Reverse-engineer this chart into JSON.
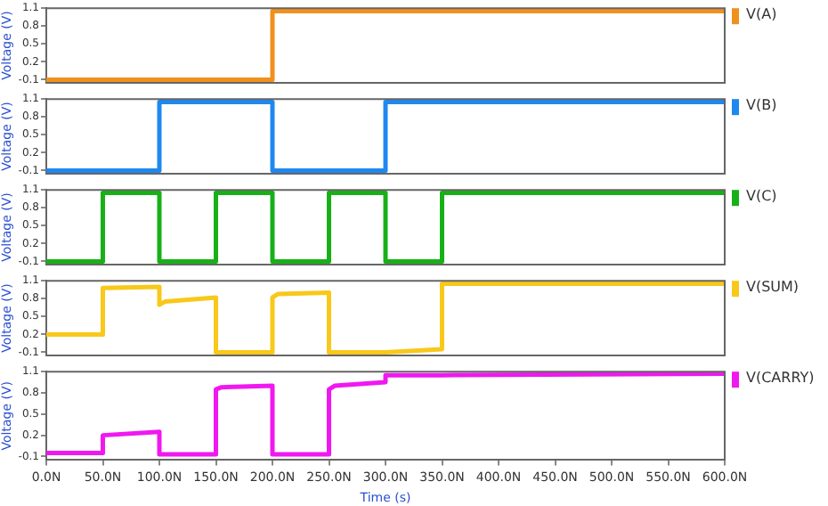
{
  "chart_data": [
    {
      "type": "line",
      "ylabel": "Voltage (V)",
      "xlim": [
        0,
        600
      ],
      "ylim": [
        -0.15,
        1.1
      ],
      "yticks": [
        -0.1,
        0.2,
        0.5,
        0.8,
        1.1
      ],
      "tick_labels": "y",
      "grid": false,
      "legend": "top right",
      "marker": "none",
      "line_style": "solid",
      "series": [
        {
          "name": "V(A)",
          "color": "#f0901e",
          "x": [
            0,
            100,
            200,
            200,
            400,
            600
          ],
          "values": [
            -0.1,
            -0.1,
            -0.1,
            1.05,
            1.05,
            1.05
          ]
        }
      ]
    },
    {
      "type": "line",
      "ylabel": "Voltage (V)",
      "xlim": [
        0,
        600
      ],
      "ylim": [
        -0.15,
        1.1
      ],
      "yticks": [
        -0.1,
        0.2,
        0.5,
        0.8,
        1.1
      ],
      "tick_labels": "y",
      "grid": false,
      "legend": "top right",
      "marker": "none",
      "line_style": "solid",
      "series": [
        {
          "name": "V(B)",
          "color": "#1e88f0",
          "x": [
            0,
            100,
            100,
            200,
            200,
            300,
            300,
            600
          ],
          "values": [
            -0.1,
            -0.1,
            1.05,
            1.05,
            -0.1,
            -0.1,
            1.05,
            1.05
          ]
        }
      ]
    },
    {
      "type": "line",
      "ylabel": "Voltage (V)",
      "xlim": [
        0,
        600
      ],
      "ylim": [
        -0.15,
        1.1
      ],
      "yticks": [
        -0.1,
        0.2,
        0.5,
        0.8,
        1.1
      ],
      "tick_labels": "y",
      "grid": false,
      "legend": "top right",
      "marker": "none",
      "line_style": "solid",
      "series": [
        {
          "name": "V(C)",
          "color": "#18b018",
          "x": [
            0,
            50,
            50,
            100,
            100,
            150,
            150,
            200,
            200,
            250,
            250,
            300,
            300,
            350,
            350,
            600
          ],
          "values": [
            -0.1,
            -0.1,
            1.05,
            1.05,
            -0.1,
            -0.1,
            1.05,
            1.05,
            -0.1,
            -0.1,
            1.05,
            1.05,
            -0.1,
            -0.1,
            1.05,
            1.05
          ]
        }
      ]
    },
    {
      "type": "line",
      "ylabel": "Voltage (V)",
      "xlim": [
        0,
        600
      ],
      "ylim": [
        -0.15,
        1.1
      ],
      "yticks": [
        -0.1,
        0.2,
        0.5,
        0.8,
        1.1
      ],
      "tick_labels": "y",
      "grid": false,
      "legend": "top right",
      "marker": "none",
      "line_style": "solid",
      "series": [
        {
          "name": "V(SUM)",
          "color": "#f8c81a",
          "x": [
            0,
            50,
            50,
            100,
            100,
            105,
            150,
            150,
            200,
            200,
            205,
            250,
            250,
            300,
            350,
            350,
            600
          ],
          "values": [
            0.2,
            0.2,
            0.98,
            1.0,
            0.7,
            0.75,
            0.82,
            -0.1,
            -0.1,
            0.82,
            0.88,
            0.9,
            -0.1,
            -0.1,
            -0.05,
            1.05,
            1.05
          ]
        }
      ]
    },
    {
      "type": "line",
      "ylabel": "Voltage (V)",
      "xlabel": "Time (s)",
      "xlim": [
        0,
        600
      ],
      "ylim": [
        -0.15,
        1.1
      ],
      "yticks": [
        -0.1,
        0.2,
        0.5,
        0.8,
        1.1
      ],
      "xticks": [
        {
          "value": 0,
          "label": "0.0N"
        },
        {
          "value": 50,
          "label": "50.0N"
        },
        {
          "value": 100,
          "label": "100.0N"
        },
        {
          "value": 150,
          "label": "150.0N"
        },
        {
          "value": 200,
          "label": "200.0N"
        },
        {
          "value": 250,
          "label": "250.0N"
        },
        {
          "value": 300,
          "label": "300.0N"
        },
        {
          "value": 350,
          "label": "350.0N"
        },
        {
          "value": 400,
          "label": "400.0N"
        },
        {
          "value": 450,
          "label": "450.0N"
        },
        {
          "value": 500,
          "label": "500.0N"
        },
        {
          "value": 550,
          "label": "550.0N"
        },
        {
          "value": 600,
          "label": "600.0N"
        }
      ],
      "grid": false,
      "legend": "top right",
      "marker": "none",
      "line_style": "solid",
      "series": [
        {
          "name": "V(CARRY)",
          "color": "#f018f0",
          "x": [
            0,
            50,
            50,
            100,
            100,
            150,
            150,
            155,
            200,
            200,
            250,
            250,
            255,
            300,
            300,
            350,
            600
          ],
          "values": [
            -0.05,
            -0.05,
            0.2,
            0.25,
            -0.07,
            -0.07,
            0.85,
            0.88,
            0.9,
            -0.07,
            -0.07,
            0.85,
            0.9,
            0.95,
            1.05,
            1.05,
            1.07
          ]
        }
      ]
    }
  ]
}
